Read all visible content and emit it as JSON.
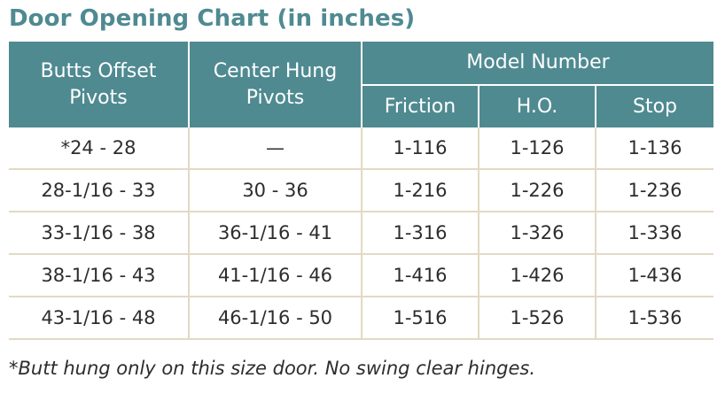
{
  "title": "Door Opening Chart (in inches)",
  "header": {
    "butts_offset_line1": "Butts Offset",
    "butts_offset_line2": "Pivots",
    "center_hung_line1": "Center Hung",
    "center_hung_line2": "Pivots",
    "model_number": "Model Number",
    "friction": "Friction",
    "ho": "H.O.",
    "stop": "Stop"
  },
  "rows": [
    {
      "butts": "*24 - 28",
      "center": "—",
      "friction": "1-116",
      "ho": "1-126",
      "stop": "1-136"
    },
    {
      "butts": "28-1/16 - 33",
      "center": "30 - 36",
      "friction": "1-216",
      "ho": "1-226",
      "stop": "1-236"
    },
    {
      "butts": "33-1/16 - 38",
      "center": "36-1/16 - 41",
      "friction": "1-316",
      "ho": "1-326",
      "stop": "1-336"
    },
    {
      "butts": "38-1/16 - 43",
      "center": "41-1/16 - 46",
      "friction": "1-416",
      "ho": "1-426",
      "stop": "1-436"
    },
    {
      "butts": "43-1/16 - 48",
      "center": "46-1/16 - 50",
      "friction": "1-516",
      "ho": "1-526",
      "stop": "1-536"
    }
  ],
  "footnote": "*Butt hung only on this size door. No swing clear hinges.",
  "colors": {
    "header_bg": "#4f8a91",
    "title": "#4f8a91",
    "row_divider": "#e3d9c4",
    "text": "#2d2d2d"
  }
}
